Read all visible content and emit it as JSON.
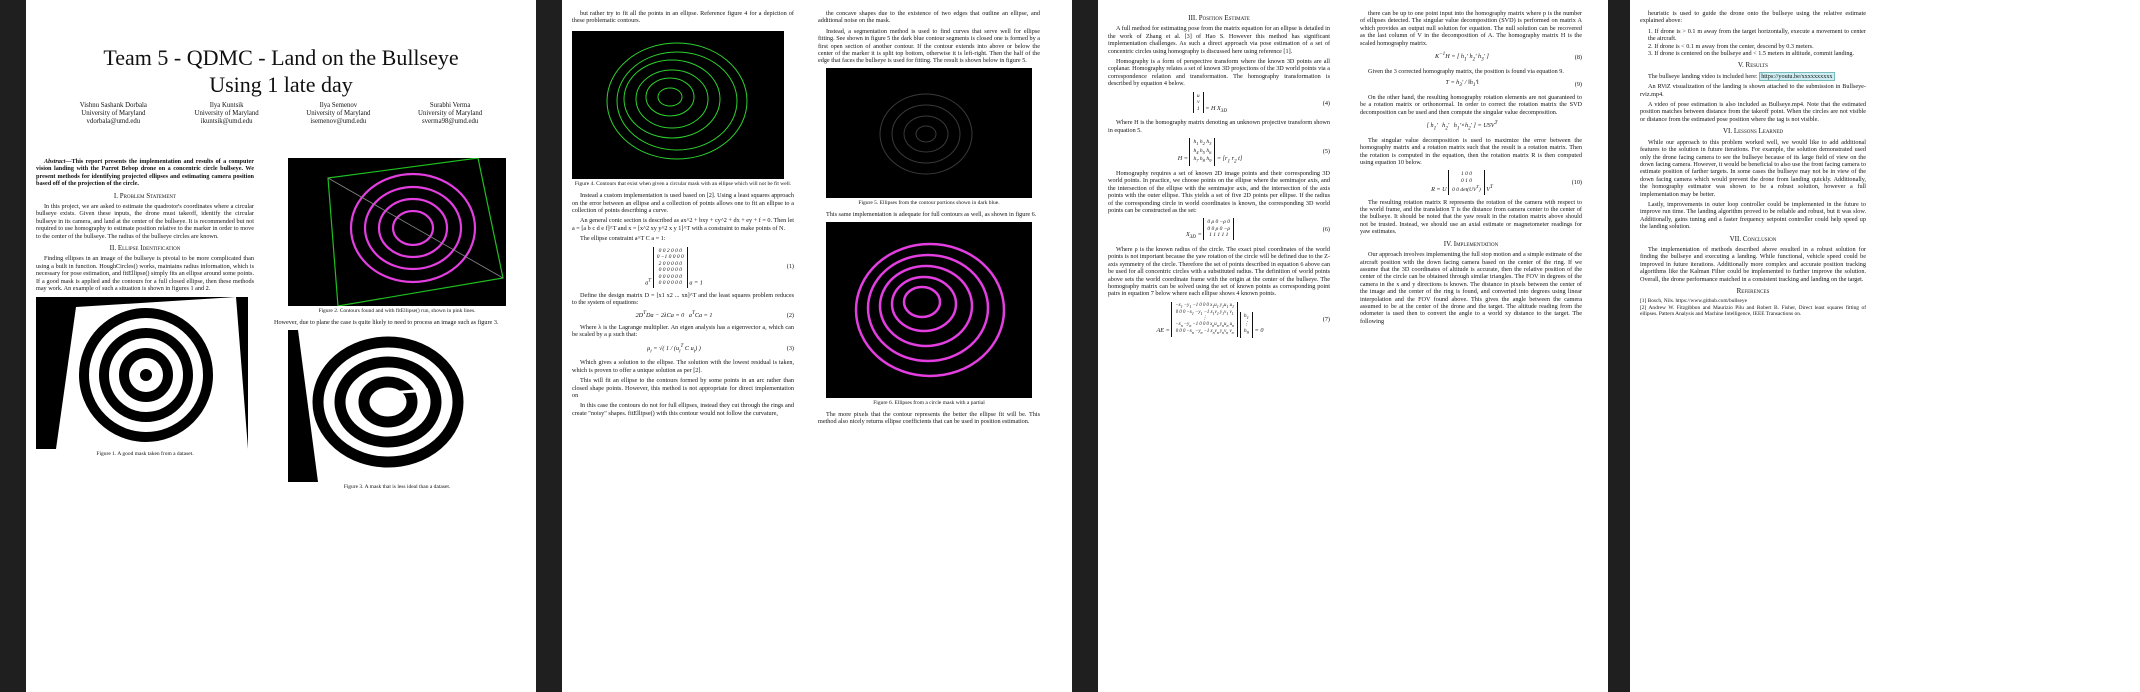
{
  "paper": {
    "title_line1": "Team 5 - QDMC - Land on the Bullseye",
    "title_line2": "Using 1 late day",
    "authors": [
      {
        "name": "Vishnu Sashank Dorbala",
        "affil": "University of Maryland",
        "email": "vdorbala@umd.edu"
      },
      {
        "name": "Ilya Kuntsik",
        "affil": "University of Maryland",
        "email": "ikuntsik@umd.edu"
      },
      {
        "name": "Ilya Semenov",
        "affil": "University of Maryland",
        "email": "isemenov@umd.edu"
      },
      {
        "name": "Surabhi Verma",
        "affil": "University of Maryland",
        "email": "sverma98@umd.edu"
      }
    ],
    "abstract_label": "Abstract",
    "abstract_text": "This report presents the implementation and results of a computer vision landing with the Parrot Bebop drone on a concentric circle bullseye. We present methods for identifying projected ellipses and estimating camera position based off of the projection of the circle.",
    "sections": {
      "s1": "I. Problem Statement",
      "s2": "II. Ellipse Identification",
      "s3": "III. Position Estimate",
      "s4": "IV. Implementation",
      "s5": "V. Results",
      "s6": "VI. Lessons Learned",
      "s7": "VII. Conclusion",
      "refs": "References"
    },
    "p1_text": "In this project, we are asked to estimate the quadrotor's coordinates where a circular bullseye exists. Given these inputs, the drone must takeoff, identify the circular bullseye in its camera, and land at the center of the bullseye. It is recommended but not required to use homography to estimate position relative to the marker in order to move to the center of the bullseye. The radius of the bullseye circles are known.",
    "p2_text": "Finding ellipses in an image of the bullseye is pivotal to be more complicated than using a built in function. HoughCircles() works, maintains radius information, which is necessary for pose estimation, and fitEllipse() simply fits an ellipse around some points. If a good mask is applied and the contours for a full closed ellipse, then these methods may work. An example of such a situation is shown in figures 1 and 2.",
    "fig1_cap": "Figure 1. A good mask taken from a dataset.",
    "fig2_cap": "Figure 2. Contours found and with fitEllipse() run, shown in pink lines.",
    "p1_col2_b": "However, due to plane the case is quite likely to need to process an image such as figure 3.",
    "fig3_cap": "Figure 3. A mask that is less ideal than a dataset.",
    "p2_col1_a": "but rather try to fit all the points in an ellipse. Reference figure 4 for a depiction of these problematic contours.",
    "fig4_cap": "Figure 4. Contours that exist when given a circular mask with an ellipse which will not be fit well.",
    "p2_col1_b": "Instead a custom implementation is used based on [2]. Using a least squares approach on the error between an ellipse and a collection of points allows one to fit an ellipse to a collection of points describing a curve.",
    "p2_col1_c": "An general conic section is described as ax^2 + bxy + cy^2 + dx + ey + f = 0. Then let a = [a b c d e f]^T and x = [x^2 xy y^2 x y 1]^T with a constraint to make points of N.",
    "p2_col1_d": "The ellipse constraint a^T C a = 1:",
    "p2_col1_e": "Define the design matrix D = [x1 x2 ... xn]^T and the least squares problem reduces to the system of equations:",
    "p2_col1_f": "Where λ is the Lagrange multiplier. An eigen analysis has a eigenvector a, which can be scaled by a μ such that:",
    "p2_col1_g": "Which gives a solution to the ellipse. The solution with the lowest residual is taken, which is proven to offer a unique solution as per [2].",
    "p2_col1_h": "This will fit an ellipse to the contours formed by some points in an arc rather than closed shape points. However, this method is not appropriate for direct implementation on",
    "p2_col1_i": "In this case the contours do not for full ellipses, instead they cut through the rings and create \"noisy\" shapes. fitEllipse() with this contour would not follow the curvature,",
    "p2_col2_a": "the concave shapes due to the existence of two edges that outline an ellipse, and additional noise on the mask.",
    "p2_col2_b": "Instead, a segmentation method is used to find curves that serve well for ellipse fitting. See shown in figure 5 the dark blue contour segments is closed one is formed by a first open section of another contour. If the contour extends into above or below the center of the marker it is split top bottom, otherwise it is left-right. Then the half of the edge that faces the bullseye is used for fitting. The result is shown below in figure 5.",
    "fig5_cap": "Figure 5. Ellipses from the contour portions shown in dark blue.",
    "p2_col2_c": "This same implementation is adequate for full contours as well, as shown in figure 6.",
    "fig6_cap": "Figure 6. Ellipses from a circle mask with a partial",
    "p2_col2_d": "The more pixels that the contour represents the better the ellipse fit will be. This method also nicely returns ellipse coefficients that can be used in position estimation.",
    "p3_col1_a": "A full method for estimating pose from the matrix equation for an ellipse is detailed in the work of Zhang et al. [3] of Hao S. However this method has significant implementation challenges. As such a direct approach via pose estimation of a set of concentric circles using homography is discussed here using reference [1].",
    "p3_col1_b": "Homography is a form of perspective transform where the known 3D points are all coplanar. Homography relates a set of known 3D projections of the 3D world points via a correspondence relation and transformation. The homography transformation is described by equation 4 below.",
    "p3_col1_c": "Where H is the homography matrix denoting an unknown projective transform shown in equation 5.",
    "p3_col1_d": "Homography requires a set of known 2D image points and their corresponding 3D world points. In practice, we choose points on the ellipse where the semimajor axis, and the intersection of the ellipse with the semimajor axis, and the intersection of the axis points with the outer ellipse. This yields a set of five 2D points per ellipse. If the radius of the corresponding circle in world coordinates is known, the corresponding 3D world points can be constructed as the set:",
    "p3_col1_e": "Where ρ is the known radius of the circle. The exact pixel coordinates of the world points is not important because the yaw rotation of the circle will be defined due to the Z-axis symmetry of the circle. Therefore the set of points described in equation 6 above can be used for all concentric circles with a substituted radius. The definition of world points above sets the world coordinate frame with the origin at the center of the bullseye. The homography matrix can be solved using the set of known points as corresponding point pairs in equation 7 below where each ellipse shows 4 known points.",
    "p3_col2_a": "there can be up to one point input into the homography matrix where p is the number of ellipses detected. The singular value decomposition (SVD) is performed on matrix A which provides an output null solution for equation. The null solution can be recovered as the last column of V in the decomposition of A. The homography matrix H is the scaled homography matrix.",
    "p3_col2_b": "Given the 3 corrected homography matrix, the position is found via equation 9.",
    "p3_col2_c": "On the other hand, the resulting homography rotation elements are not guaranteed to be a rotation matrix or orthonormal. In order to correct the rotation matrix the SVD decomposition can be used and then compute the singular value decomposition.",
    "p3_col2_d": "The singular value decomposition is used to maximize the error between the homography matrix and a rotation matrix such that the result is a rotation matrix. Then the rotation is computed in the equation, then the rotation matrix R is then computed using equation 10 below.",
    "p3_col2_e": "The resulting rotation matrix R represents the rotation of the camera with respect to the world frame, and the translation T is the distance from camera center to the center of the bullseye. It should be noted that the yaw result in the rotation matrix above should not be trusted. Instead, we should use an axial estimate or magnetometer readings for yaw estimates.",
    "p3_col2_f": "Our approach involves implementing the full stop motion and a simple estimate of the aircraft position with the down facing camera based on the center of the ring. If we assume that the 3D coordinates of altitude is accurate, then the relative position of the center of the circle can be obtained through similar triangles. The FOV in degrees of the camera in the x and y directions is known. The distance in pixels between the center of the image and the center of the ring is found, and converted into degrees using linear interpolation and the FOV found above. This gives the angle between the camera assumed to be at the center of the drone and the target. The altitude reading from the odometer is used then to convert the angle to a world xy distance to the target. The following",
    "p4_col1_a": "heuristic is used to guide the drone onto the bullseye using the relative estimate explained above:",
    "p4_bullets": [
      "1. If drone is > 0.1 m away from the target horizontally, execute a movement to center the aircraft.",
      "2. If drone is < 0.1 m away from the center, descend by 0.3 meters.",
      "3. If drone is centered on the bullseye and < 1.5 meters in altitude, commit landing."
    ],
    "p4_col1_b_pre": "The bullseye landing video is included here:",
    "p4_col1_b_link": "https://youtu.be/xxxxxxxxxx",
    "p4_col1_c": "An RViZ visualization of the landing is shown attached to the submission in Bullseye-rviz.mp4.",
    "p4_col1_d": "A video of pose estimation is also included as Bullseye.mp4. Note that the estimated position matches between distance from the takeoff point. When the circles are not visible or distance from the estimated pose position where the tag is not visible.",
    "p4_col1_e": "While our approach to this problem worked well, we would like to add additional features to the solution in future iterations. For example, the solution demonstrated used only the drone facing camera to see the bullseye because of its large field of view on the down facing camera. However, it would be beneficial to also use the front facing camera to estimate position of farther targets. In some cases the bullseye may not be in view of the down facing camera which would prevent the drone from landing quickly. Additionally, the homography estimator was shown to be a robust solution, however a full implementation may be better.",
    "p4_col1_f": "Lastly, improvements in outer loop controller could be implemented in the future to improve run time. The landing algorithm proved to be reliable and robust, but it was slow. Additionally, gains tuning and a faster frequency setpoint controller could help speed up the landing solution.",
    "p4_col1_g": "The implementation of methods described above resulted in a robust solution for finding the bullseye and executing a landing. While functional, vehicle speed could be improved in future iterations. Additionally more complex and accurate position tracking algorithms like the Kalman Filter could be implemented to further improve the solution. Overall, the drone performance matched in a consistent tracking and landing on the target.",
    "references": [
      "[1] Bosch, Nils. https://www.github.com/bullseye",
      "[2] Andrew W. Fitzgibbon and Maurizio Pilu and Robert B. Fisher, Direct least squares fitting of ellipses. Pattern Analysis and Machine Intelligence, IEEE Transactions on."
    ],
    "eq_labels": [
      "(1)",
      "(2)",
      "(3)",
      "(4)",
      "(5)",
      "(6)",
      "(7)",
      "(8)",
      "(9)",
      "(10)"
    ]
  }
}
